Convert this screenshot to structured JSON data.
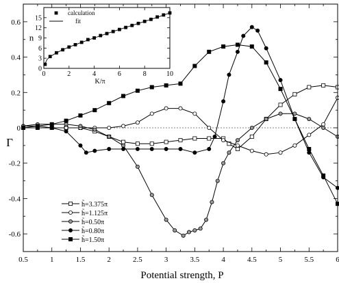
{
  "chart_data": [
    {
      "type": "line",
      "xlabel": "Potential strength, P",
      "ylabel": "Γ",
      "xlim": [
        0.5,
        6
      ],
      "ylim": [
        -0.7,
        0.7
      ],
      "xticks": [
        0.5,
        1,
        1.5,
        2,
        2.5,
        3,
        3.5,
        4,
        4.5,
        5,
        5.5,
        6
      ],
      "xtick_labels": [
        "0.5",
        "1",
        "1.5",
        "2",
        "2.5",
        "3",
        "3.5",
        "4",
        "4.5",
        "5",
        "5.5",
        "6"
      ],
      "yticks": [
        -0.6,
        -0.4,
        -0.2,
        0,
        0.2,
        0.4,
        0.6
      ],
      "ytick_labels": [
        "-0.6",
        "-0.4",
        "-0.2",
        "0",
        "0.2",
        "0.4",
        "0.6"
      ],
      "legend_position": "lower-left",
      "series": [
        {
          "name": "h̃=3.375π",
          "marker": "open-square",
          "x": [
            0.5,
            0.75,
            1.0,
            1.25,
            1.5,
            1.75,
            2.0,
            2.25,
            2.5,
            2.75,
            3.0,
            3.25,
            3.5,
            3.75,
            4.0,
            4.1,
            4.25,
            4.5,
            4.75,
            5.0,
            5.25,
            5.5,
            5.75,
            6.0
          ],
          "y": [
            0.0,
            0.0,
            0.0,
            0.0,
            0.0,
            -0.02,
            -0.05,
            -0.08,
            -0.09,
            -0.09,
            -0.08,
            -0.07,
            -0.06,
            -0.06,
            -0.06,
            -0.09,
            -0.12,
            -0.05,
            0.05,
            0.13,
            0.19,
            0.23,
            0.24,
            0.23
          ]
        },
        {
          "name": "h̃=1.125π",
          "marker": "open-circle",
          "x": [
            0.5,
            0.75,
            1.0,
            1.25,
            1.5,
            1.75,
            2.0,
            2.25,
            2.5,
            2.75,
            3.0,
            3.25,
            3.5,
            3.75,
            4.0,
            4.25,
            4.5,
            4.75,
            5.0,
            5.25,
            5.5,
            5.75,
            6.0
          ],
          "y": [
            0.01,
            0.01,
            0.0,
            0.0,
            0.0,
            0.0,
            0.0,
            0.01,
            0.03,
            0.08,
            0.11,
            0.11,
            0.08,
            0.0,
            -0.07,
            -0.1,
            -0.13,
            -0.15,
            -0.14,
            -0.1,
            -0.04,
            0.02,
            0.17
          ]
        },
        {
          "name": "h̃=0.50π",
          "marker": "grey-circle",
          "x": [
            0.5,
            0.75,
            1.0,
            1.25,
            1.5,
            1.75,
            2.0,
            2.25,
            2.5,
            2.75,
            3.0,
            3.15,
            3.3,
            3.4,
            3.5,
            3.6,
            3.7,
            3.8,
            3.9,
            4.0,
            4.1,
            4.25,
            4.5,
            4.75,
            5.0,
            5.25,
            5.5,
            5.75,
            6.0
          ],
          "y": [
            0.01,
            0.02,
            0.02,
            0.02,
            0.01,
            -0.01,
            -0.05,
            -0.1,
            -0.22,
            -0.38,
            -0.52,
            -0.58,
            -0.61,
            -0.59,
            -0.58,
            -0.57,
            -0.52,
            -0.42,
            -0.3,
            -0.2,
            -0.14,
            -0.07,
            0.0,
            0.05,
            0.08,
            0.08,
            0.05,
            0.0,
            -0.05
          ]
        },
        {
          "name": "h̃=0.80π",
          "marker": "filled-circle",
          "x": [
            0.5,
            0.75,
            1.0,
            1.25,
            1.5,
            1.6,
            1.75,
            2.0,
            2.25,
            2.5,
            2.75,
            3.0,
            3.25,
            3.5,
            3.75,
            3.85,
            4.0,
            4.1,
            4.25,
            4.35,
            4.5,
            4.6,
            4.75,
            5.0,
            5.25,
            5.5,
            5.75,
            6.0
          ],
          "y": [
            0.0,
            0.0,
            0.0,
            -0.02,
            -0.1,
            -0.14,
            -0.13,
            -0.12,
            -0.12,
            -0.12,
            -0.12,
            -0.12,
            -0.12,
            -0.14,
            -0.12,
            -0.05,
            0.15,
            0.3,
            0.43,
            0.52,
            0.57,
            0.55,
            0.45,
            0.27,
            0.05,
            -0.14,
            -0.28,
            -0.34
          ]
        },
        {
          "name": "h̃=1.50π",
          "marker": "filled-square",
          "x": [
            0.5,
            0.75,
            1.0,
            1.25,
            1.5,
            1.75,
            2.0,
            2.25,
            2.5,
            2.75,
            3.0,
            3.25,
            3.5,
            3.75,
            4.0,
            4.25,
            4.5,
            4.75,
            5.0,
            5.25,
            5.5,
            5.75,
            6.0
          ],
          "y": [
            0.0,
            0.01,
            0.02,
            0.04,
            0.07,
            0.1,
            0.14,
            0.18,
            0.21,
            0.23,
            0.24,
            0.25,
            0.35,
            0.43,
            0.46,
            0.47,
            0.46,
            0.37,
            0.22,
            0.05,
            -0.12,
            -0.27,
            -0.43
          ]
        }
      ]
    },
    {
      "type": "scatter",
      "xlabel": "K/π",
      "ylabel": "n",
      "xlim": [
        0,
        10
      ],
      "ylim": [
        0,
        18
      ],
      "xticks": [
        0,
        2,
        4,
        6,
        8,
        10
      ],
      "xtick_labels": [
        "0",
        "2",
        "4",
        "6",
        "8",
        "10"
      ],
      "yticks": [
        0,
        3,
        6,
        9,
        12,
        15
      ],
      "ytick_labels": [
        "0",
        "3",
        "6",
        "9",
        "12",
        "15"
      ],
      "legend_position": "top-left",
      "series": [
        {
          "name": "calculation",
          "marker": "filled-square",
          "x": [
            0.1,
            0.5,
            1.0,
            1.5,
            2.0,
            2.5,
            3.0,
            3.5,
            4.0,
            4.5,
            5.0,
            5.5,
            6.0,
            6.5,
            7.0,
            7.5,
            8.0,
            8.5,
            9.0,
            9.5,
            10.0
          ],
          "y": [
            1.2,
            3.5,
            4.6,
            5.5,
            6.3,
            7.0,
            7.7,
            8.5,
            9.0,
            9.7,
            10.3,
            10.9,
            11.5,
            12.1,
            12.7,
            13.3,
            13.9,
            14.5,
            15.2,
            15.8,
            16.4
          ]
        },
        {
          "name": "fit",
          "marker": "line",
          "x": [
            0.05,
            0.25,
            0.5,
            1,
            1.5,
            2,
            3,
            4,
            5,
            6,
            7,
            8,
            9,
            10
          ],
          "y": [
            1.0,
            2.6,
            3.5,
            4.6,
            5.5,
            6.3,
            7.7,
            9.0,
            10.3,
            11.5,
            12.7,
            13.9,
            15.1,
            16.4
          ]
        }
      ]
    }
  ]
}
